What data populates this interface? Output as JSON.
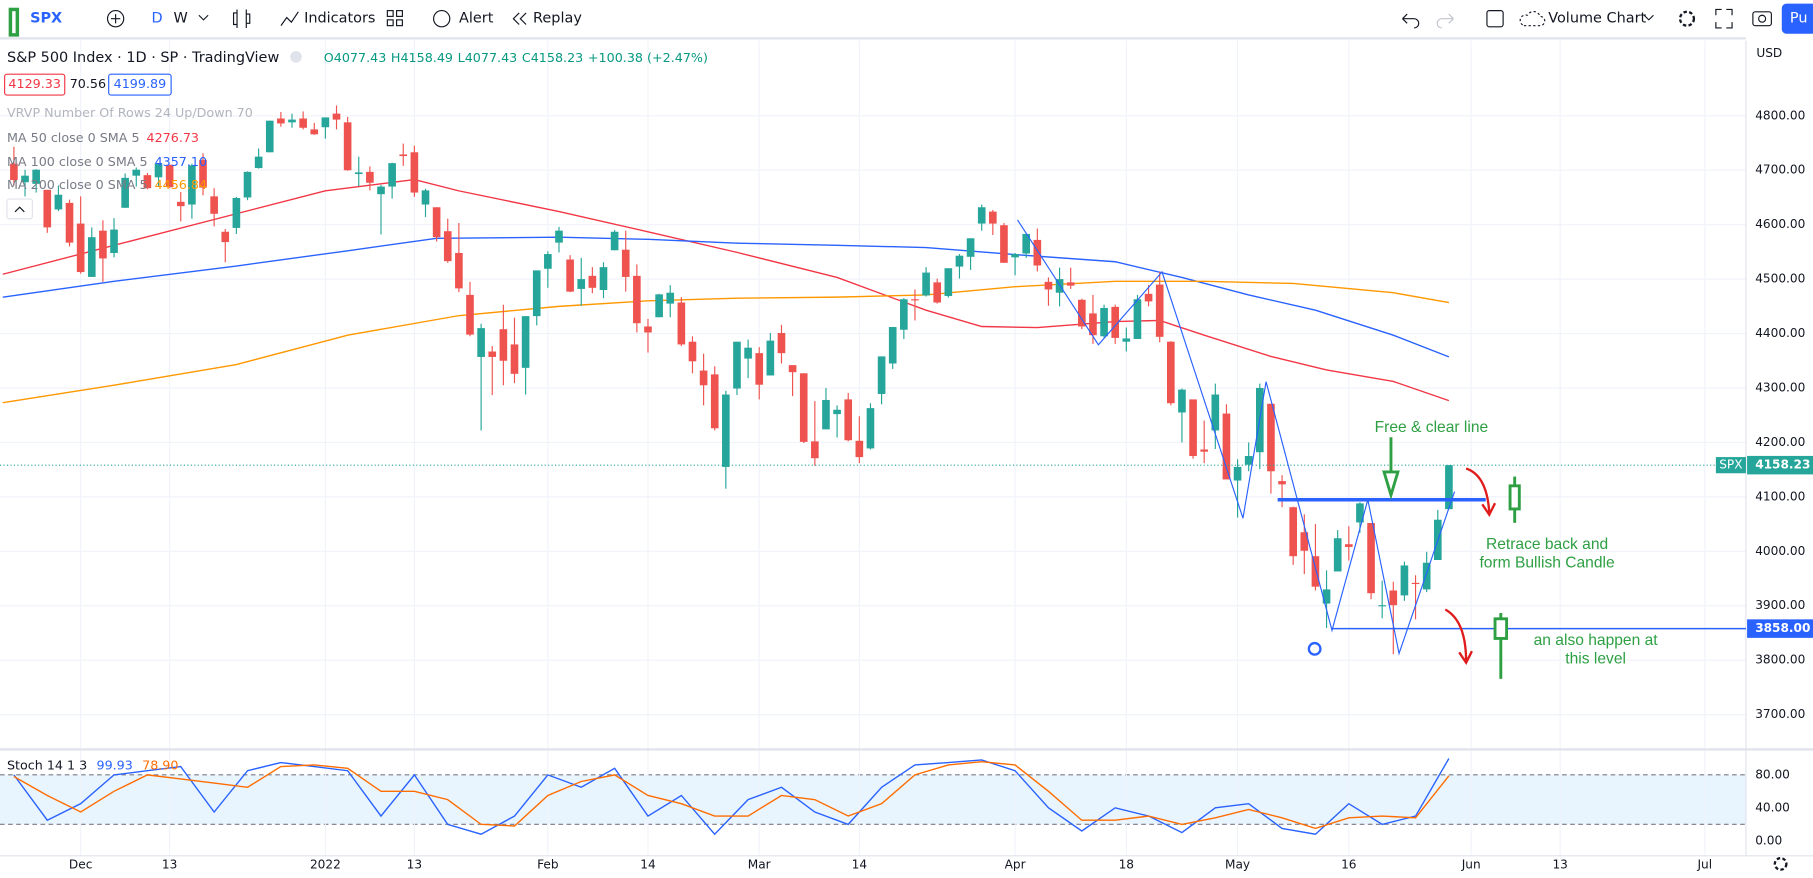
{
  "toolbar": {
    "symbol": "SPX",
    "intervals": [
      "D",
      "W"
    ],
    "indicators": "Indicators",
    "alert": "Alert",
    "replay": "Replay",
    "chart_type": "Volume Chart",
    "publish": "Pu"
  },
  "legend": {
    "title": "S&P 500 Index · 1D · SP · TradingView",
    "ohlc": [
      "O4077.43",
      "H4158.49",
      "L4077.43",
      "C4158.23",
      "+100.38 (+2.47%)"
    ],
    "bid": "4129.33",
    "spread": "70.56",
    "ask": "4199.89",
    "vrvp": "VRVP Number Of Rows 24 Up/Down 70"
  },
  "chart_data": [
    {
      "type": "candlestick",
      "currency": "USD",
      "grid": true,
      "xlim": [
        -1.25,
        155.7
      ],
      "ylim": [
        3636,
        4938
      ],
      "xticks": [
        {
          "value": 6,
          "label": "Dec"
        },
        {
          "value": 14,
          "label": "13"
        },
        {
          "value": 28,
          "label": "2022"
        },
        {
          "value": 36,
          "label": "13"
        },
        {
          "value": 48,
          "label": "Feb"
        },
        {
          "value": 57,
          "label": "14"
        },
        {
          "value": 67,
          "label": "Mar"
        },
        {
          "value": 76,
          "label": "14"
        },
        {
          "value": 90,
          "label": "Apr"
        },
        {
          "value": 100,
          "label": "18"
        },
        {
          "value": 110,
          "label": "May"
        },
        {
          "value": 120,
          "label": "16"
        },
        {
          "value": 131,
          "label": "Jun"
        },
        {
          "value": 139,
          "label": "13"
        },
        {
          "value": 152,
          "label": "Jul"
        }
      ],
      "yticks": [
        {
          "value": 4800,
          "label": "4800.00"
        },
        {
          "value": 4700,
          "label": "4700.00"
        },
        {
          "value": 4600,
          "label": "4600.00"
        },
        {
          "value": 4500,
          "label": "4500.00"
        },
        {
          "value": 4400,
          "label": "4400.00"
        },
        {
          "value": 4300,
          "label": "4300.00"
        },
        {
          "value": 4200,
          "label": "4200.00"
        },
        {
          "value": 4100,
          "label": "4100.00"
        },
        {
          "value": 4000,
          "label": "4000.00"
        },
        {
          "value": 3900,
          "label": "3900.00"
        },
        {
          "value": 3800,
          "label": "3800.00"
        },
        {
          "value": 3700,
          "label": "3700.00"
        }
      ],
      "candles": [
        [
          4712,
          4743,
          4672,
          4682
        ],
        [
          4678,
          4701,
          4652,
          4690
        ],
        [
          4675,
          4702,
          4659,
          4701
        ],
        [
          4664,
          4664,
          4585,
          4595
        ],
        [
          4628,
          4672,
          4625,
          4655
        ],
        [
          4640,
          4646,
          4560,
          4567
        ],
        [
          4602,
          4652,
          4510,
          4513
        ],
        [
          4504,
          4595,
          4504,
          4577
        ],
        [
          4589,
          4608,
          4495,
          4538
        ],
        [
          4548,
          4612,
          4540,
          4591
        ],
        [
          4631,
          4694,
          4631,
          4686
        ],
        [
          4690,
          4705,
          4670,
          4701
        ],
        [
          4691,
          4695,
          4665,
          4667
        ],
        [
          4687,
          4713,
          4671,
          4712
        ],
        [
          4710,
          4710,
          4667,
          4669
        ],
        [
          4642,
          4660,
          4606,
          4634
        ],
        [
          4637,
          4712,
          4611,
          4709
        ],
        [
          4719,
          4731,
          4654,
          4668
        ],
        [
          4652,
          4667,
          4597,
          4620
        ],
        [
          4587,
          4592,
          4531,
          4568
        ],
        [
          4594,
          4651,
          4583,
          4649
        ],
        [
          4650,
          4698,
          4645,
          4697
        ],
        [
          4704,
          4740,
          4703,
          4725
        ],
        [
          4733,
          4791,
          4733,
          4791
        ],
        [
          4795,
          4807,
          4780,
          4786
        ],
        [
          4788,
          4804,
          4778,
          4793
        ],
        [
          4795,
          4808,
          4775,
          4778
        ],
        [
          4775,
          4787,
          4765,
          4766
        ],
        [
          4779,
          4797,
          4758,
          4797
        ],
        [
          4804,
          4819,
          4775,
          4793
        ],
        [
          4788,
          4798,
          4699,
          4700
        ],
        [
          4693,
          4725,
          4671,
          4696
        ],
        [
          4697,
          4707,
          4663,
          4677
        ],
        [
          4656,
          4673,
          4582,
          4670
        ],
        [
          4670,
          4714,
          4648,
          4713
        ],
        [
          4729,
          4749,
          4708,
          4726
        ],
        [
          4733,
          4745,
          4651,
          4659
        ],
        [
          4637,
          4666,
          4614,
          4663
        ],
        [
          4632,
          4632,
          4569,
          4577
        ],
        [
          4588,
          4611,
          4530,
          4533
        ],
        [
          4548,
          4603,
          4476,
          4483
        ],
        [
          4471,
          4495,
          4395,
          4398
        ],
        [
          4357,
          4418,
          4222,
          4410
        ],
        [
          4367,
          4377,
          4287,
          4357
        ],
        [
          4408,
          4453,
          4305,
          4350
        ],
        [
          4380,
          4429,
          4309,
          4326
        ],
        [
          4337,
          4432,
          4288,
          4432
        ],
        [
          4432,
          4516,
          4415,
          4516
        ],
        [
          4519,
          4551,
          4484,
          4546
        ],
        [
          4567,
          4596,
          4549,
          4589
        ],
        [
          4536,
          4544,
          4476,
          4477
        ],
        [
          4482,
          4539,
          4451,
          4500
        ],
        [
          4506,
          4522,
          4474,
          4484
        ],
        [
          4480,
          4531,
          4465,
          4522
        ],
        [
          4553,
          4590,
          4553,
          4587
        ],
        [
          4554,
          4589,
          4477,
          4504
        ],
        [
          4506,
          4527,
          4402,
          4419
        ],
        [
          4413,
          4427,
          4365,
          4402
        ],
        [
          4430,
          4473,
          4430,
          4472
        ],
        [
          4455,
          4489,
          4430,
          4475
        ],
        [
          4457,
          4467,
          4377,
          4380
        ],
        [
          4385,
          4395,
          4327,
          4349
        ],
        [
          4332,
          4363,
          4268,
          4305
        ],
        [
          4325,
          4340,
          4222,
          4226
        ],
        [
          4155,
          4295,
          4115,
          4288
        ],
        [
          4299,
          4385,
          4287,
          4385
        ],
        [
          4354,
          4389,
          4318,
          4374
        ],
        [
          4364,
          4375,
          4279,
          4306
        ],
        [
          4323,
          4401,
          4323,
          4387
        ],
        [
          4401,
          4416,
          4345,
          4364
        ],
        [
          4342,
          4342,
          4285,
          4329
        ],
        [
          4327,
          4327,
          4199,
          4201
        ],
        [
          4202,
          4276,
          4157,
          4171
        ],
        [
          4224,
          4300,
          4224,
          4278
        ],
        [
          4252,
          4268,
          4209,
          4260
        ],
        [
          4279,
          4291,
          4202,
          4204
        ],
        [
          4203,
          4248,
          4162,
          4173
        ],
        [
          4189,
          4272,
          4187,
          4263
        ],
        [
          4289,
          4358,
          4270,
          4358
        ],
        [
          4345,
          4412,
          4335,
          4412
        ],
        [
          4407,
          4465,
          4390,
          4463
        ],
        [
          4463,
          4481,
          4424,
          4461
        ],
        [
          4470,
          4522,
          4468,
          4512
        ],
        [
          4494,
          4501,
          4455,
          4457
        ],
        [
          4469,
          4520,
          4466,
          4520
        ],
        [
          4523,
          4546,
          4501,
          4543
        ],
        [
          4541,
          4575,
          4517,
          4575
        ],
        [
          4602,
          4637,
          4589,
          4632
        ],
        [
          4624,
          4627,
          4581,
          4602
        ],
        [
          4599,
          4603,
          4530,
          4530
        ],
        [
          4540,
          4548,
          4507,
          4546
        ],
        [
          4547,
          4583,
          4539,
          4583
        ],
        [
          4572,
          4593,
          4514,
          4525
        ],
        [
          4495,
          4503,
          4451,
          4481
        ],
        [
          4475,
          4521,
          4450,
          4500
        ],
        [
          4494,
          4521,
          4482,
          4488
        ],
        [
          4462,
          4464,
          4408,
          4413
        ],
        [
          4437,
          4471,
          4381,
          4397
        ],
        [
          4395,
          4453,
          4392,
          4447
        ],
        [
          4449,
          4453,
          4381,
          4392
        ],
        [
          4385,
          4411,
          4367,
          4391
        ],
        [
          4390,
          4471,
          4390,
          4463
        ],
        [
          4473,
          4489,
          4450,
          4459
        ],
        [
          4490,
          4513,
          4384,
          4394
        ],
        [
          4385,
          4386,
          4268,
          4272
        ],
        [
          4255,
          4299,
          4200,
          4297
        ],
        [
          4279,
          4279,
          4170,
          4175
        ],
        [
          4187,
          4240,
          4162,
          4183
        ],
        [
          4222,
          4308,
          4188,
          4288
        ],
        [
          4253,
          4270,
          4132,
          4132
        ],
        [
          4130,
          4169,
          4062,
          4155
        ],
        [
          4159,
          4200,
          4147,
          4175
        ],
        [
          4182,
          4308,
          4151,
          4300
        ],
        [
          4271,
          4271,
          4106,
          4147
        ],
        [
          4129,
          4140,
          4081,
          4123
        ],
        [
          4081,
          4082,
          3975,
          3991
        ],
        [
          4035,
          4068,
          3958,
          4001
        ],
        [
          3991,
          4050,
          3928,
          3935
        ],
        [
          3904,
          3965,
          3859,
          3930
        ],
        [
          3963,
          4039,
          3963,
          4024
        ],
        [
          4013,
          4046,
          3983,
          4008
        ],
        [
          4053,
          4090,
          4034,
          4088
        ],
        [
          4052,
          4052,
          3912,
          3923
        ],
        [
          3899,
          3946,
          3877,
          3901
        ],
        [
          3928,
          3944,
          3811,
          3901
        ],
        [
          3919,
          3981,
          3909,
          3974
        ],
        [
          3942,
          3956,
          3875,
          3941
        ],
        [
          3930,
          3999,
          3925,
          3979
        ],
        [
          3984,
          4076,
          3984,
          4058
        ],
        [
          4077.43,
          4158.49,
          4077.43,
          4158.23
        ]
      ],
      "up_color": "#26a69a",
      "down_color": "#ef5350",
      "series": [
        {
          "name": "MA 50 close 0 SMA 5",
          "color": "#f23645",
          "legend_value": "4276.73",
          "x": [
            -1,
            9,
            20,
            28,
            36,
            40,
            49,
            57,
            65,
            74,
            82,
            87,
            92,
            99,
            103,
            107,
            113,
            118,
            124,
            129
          ],
          "values": [
            4509,
            4562,
            4620,
            4662,
            4683,
            4662,
            4624,
            4587,
            4549,
            4503,
            4443,
            4413,
            4411,
            4422,
            4424,
            4397,
            4358,
            4333,
            4312,
            4276.73
          ]
        },
        {
          "name": "MA 100 close 0 SMA 5",
          "color": "#2962ff",
          "legend_value": "4357.10",
          "x": [
            -1,
            9,
            20,
            30,
            38,
            49,
            57,
            65,
            74,
            82,
            90,
            99,
            105,
            111,
            117,
            124,
            129
          ],
          "values": [
            4467,
            4496,
            4524,
            4552,
            4575,
            4577,
            4573,
            4566,
            4562,
            4558,
            4545,
            4532,
            4503,
            4471,
            4443,
            4397,
            4357.1
          ]
        },
        {
          "name": "MA 200 close 0 SMA 5",
          "color": "#ff9800",
          "legend_value": "4456.84",
          "x": [
            -1,
            9,
            20,
            30,
            40,
            49,
            57,
            65,
            74,
            82,
            90,
            99,
            107,
            115,
            124,
            129
          ],
          "values": [
            4273,
            4305,
            4343,
            4397,
            4433,
            4450,
            4460,
            4465,
            4467,
            4471,
            4486,
            4496,
            4496,
            4492,
            4475,
            4456.84
          ]
        }
      ],
      "last_price": {
        "symbol": "SPX",
        "value": 4158.23,
        "label": "4158.23"
      },
      "level": {
        "value": 3858,
        "label": "3858.00"
      },
      "annotations": [
        {
          "lines": [
            "Free & clear line"
          ]
        },
        {
          "lines": [
            "Retrace back and",
            "form Bullish Candle"
          ]
        },
        {
          "lines": [
            "an also happen at",
            "this level"
          ]
        }
      ]
    },
    {
      "type": "line",
      "title": "Stoch 14 1 3",
      "ylim": [
        -18.2,
        110.8
      ],
      "yticks": [
        {
          "value": 80,
          "label": "80.00"
        },
        {
          "value": 40,
          "label": "40.00"
        },
        {
          "value": 0,
          "label": "0.00"
        }
      ],
      "bands": [
        20,
        80
      ],
      "band_color": "#2196f3",
      "x": [
        0,
        3,
        6,
        9,
        12,
        15,
        18,
        21,
        24,
        27,
        30,
        33,
        36,
        39,
        42,
        45,
        48,
        51,
        54,
        57,
        60,
        63,
        66,
        69,
        72,
        75,
        78,
        81,
        84,
        87,
        90,
        93,
        96,
        99,
        102,
        105,
        108,
        111,
        114,
        117,
        120,
        123,
        126,
        129
      ],
      "series": [
        {
          "color": "#2962ff",
          "legend_value": "99.93",
          "values": [
            80,
            25,
            45,
            80,
            85,
            90,
            35,
            85,
            95,
            90,
            85,
            30,
            80,
            20,
            8,
            30,
            80,
            65,
            88,
            30,
            55,
            8,
            50,
            65,
            35,
            20,
            65,
            92,
            95,
            98,
            85,
            40,
            12,
            40,
            30,
            10,
            40,
            45,
            15,
            8,
            45,
            20,
            30,
            99.93
          ]
        },
        {
          "color": "#ff6d00",
          "legend_value": "78.90",
          "values": [
            78,
            55,
            35,
            60,
            80,
            75,
            70,
            65,
            90,
            92,
            88,
            60,
            60,
            50,
            20,
            18,
            55,
            72,
            80,
            55,
            45,
            30,
            30,
            55,
            50,
            30,
            45,
            80,
            92,
            96,
            92,
            60,
            25,
            25,
            30,
            20,
            28,
            38,
            28,
            15,
            28,
            30,
            28,
            78.9
          ]
        }
      ]
    }
  ]
}
